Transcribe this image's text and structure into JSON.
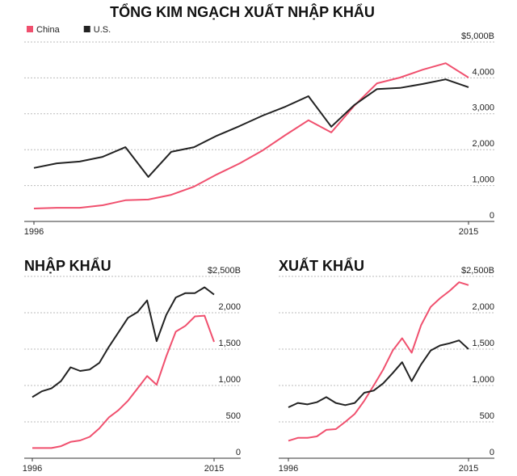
{
  "chart_data": [
    {
      "type": "line",
      "title": "TỔNG KIM NGẠCH XUẤT NHẬP KHẨU",
      "x": [
        1996,
        1997,
        1998,
        1999,
        2000,
        2001,
        2002,
        2003,
        2004,
        2005,
        2006,
        2007,
        2008,
        2009,
        2010,
        2011,
        2012,
        2013,
        2014,
        2015
      ],
      "xlim": [
        1996,
        2015
      ],
      "xticks": [
        1996,
        2015
      ],
      "ylim": [
        0,
        5000
      ],
      "yticks": [
        0,
        {
          "value": 1000,
          "label": "1,000"
        },
        {
          "value": 2000,
          "label": "2,000"
        },
        {
          "value": 3000,
          "label": "3,000"
        },
        {
          "value": 4000,
          "label": "4,000"
        },
        {
          "value": 5000,
          "label": "$5,000B"
        }
      ],
      "grid": true,
      "legend": "top-left",
      "series": [
        {
          "name": "China",
          "color": "#f0506e",
          "values": [
            360,
            380,
            380,
            450,
            590,
            610,
            740,
            970,
            1310,
            1620,
            1980,
            2410,
            2820,
            2480,
            3220,
            3850,
            4010,
            4230,
            4410,
            4010
          ]
        },
        {
          "name": "U.S.",
          "color": "#222222",
          "values": [
            1490,
            1620,
            1670,
            1800,
            2070,
            1240,
            1940,
            2070,
            2390,
            2660,
            2950,
            3200,
            3490,
            2640,
            3240,
            3690,
            3720,
            3830,
            3960,
            3740
          ]
        }
      ]
    },
    {
      "type": "line",
      "title": "NHẬP KHẨU",
      "x": [
        1996,
        1997,
        1998,
        1999,
        2000,
        2001,
        2002,
        2003,
        2004,
        2005,
        2006,
        2007,
        2008,
        2009,
        2010,
        2011,
        2012,
        2013,
        2014,
        2015
      ],
      "xlim": [
        1996,
        2015
      ],
      "xticks": [
        1996,
        2015
      ],
      "ylim": [
        0,
        2500
      ],
      "yticks": [
        0,
        500,
        {
          "value": 1000,
          "label": "1,000"
        },
        {
          "value": 1500,
          "label": "1,500"
        },
        {
          "value": 2000,
          "label": "2,000"
        },
        {
          "value": 2500,
          "label": "$2,500B"
        }
      ],
      "grid": true,
      "series": [
        {
          "color": "#f0506e",
          "values": [
            140,
            140,
            140,
            165,
            225,
            245,
            295,
            410,
            560,
            660,
            790,
            960,
            1130,
            1010,
            1400,
            1740,
            1820,
            1950,
            1960,
            1600
          ]
        },
        {
          "color": "#222222",
          "values": [
            840,
            920,
            960,
            1060,
            1250,
            1200,
            1220,
            1310,
            1530,
            1730,
            1930,
            2010,
            2170,
            1610,
            1970,
            2210,
            2270,
            2270,
            2350,
            2250
          ]
        }
      ]
    },
    {
      "type": "line",
      "title": "XUẤT KHẨU",
      "x": [
        1996,
        1997,
        1998,
        1999,
        2000,
        2001,
        2002,
        2003,
        2004,
        2005,
        2006,
        2007,
        2008,
        2009,
        2010,
        2011,
        2012,
        2013,
        2014,
        2015
      ],
      "xlim": [
        1996,
        2015
      ],
      "xticks": [
        1996,
        2015
      ],
      "ylim": [
        0,
        2500
      ],
      "yticks": [
        0,
        500,
        {
          "value": 1000,
          "label": "1,000"
        },
        {
          "value": 1500,
          "label": "1,500"
        },
        {
          "value": 2000,
          "label": "2,000"
        },
        {
          "value": 2500,
          "label": "$2,500B"
        }
      ],
      "grid": true,
      "series": [
        {
          "color": "#f0506e",
          "values": [
            240,
            280,
            280,
            300,
            390,
            400,
            500,
            610,
            790,
            1000,
            1220,
            1480,
            1650,
            1450,
            1830,
            2080,
            2200,
            2300,
            2420,
            2380
          ]
        },
        {
          "color": "#222222",
          "values": [
            700,
            760,
            740,
            770,
            840,
            760,
            730,
            760,
            900,
            930,
            1030,
            1170,
            1320,
            1060,
            1290,
            1480,
            1550,
            1580,
            1620,
            1500
          ]
        }
      ]
    }
  ]
}
